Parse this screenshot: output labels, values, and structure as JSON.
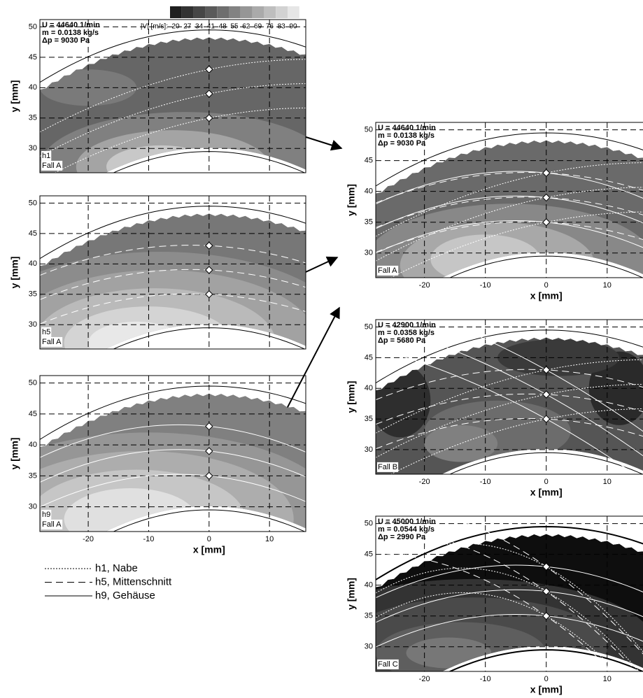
{
  "chart_data": [
    {
      "type": "contour",
      "ylabel": "y [mm]",
      "xlim": [
        -28,
        16
      ],
      "ylim": [
        26,
        51.2
      ],
      "xticks": [
        -20,
        -10,
        0,
        10
      ],
      "yticks": [
        30,
        35,
        40,
        45,
        50
      ],
      "annotations": [
        "U = 44640 1/min",
        "m = 0.0138 kg/s",
        "Δp = 9030 Pa"
      ],
      "labels": [
        "h1",
        "Fall A"
      ],
      "points": {
        "x": [
          0,
          0,
          0
        ],
        "y": [
          43,
          39,
          35
        ]
      },
      "colorbar": {
        "title": "|V| [m/s]:",
        "ticks": [
          20,
          27,
          34,
          41,
          48,
          55,
          62,
          69,
          76,
          83,
          90
        ]
      }
    },
    {
      "type": "contour",
      "ylabel": "y [mm]",
      "xlim": [
        -28,
        16
      ],
      "ylim": [
        26,
        51.2
      ],
      "xticks": [
        -20,
        -10,
        0,
        10
      ],
      "yticks": [
        30,
        35,
        40,
        45,
        50
      ],
      "labels": [
        "h5",
        "Fall A"
      ],
      "points": {
        "x": [
          0,
          0,
          0
        ],
        "y": [
          43,
          39,
          35
        ]
      }
    },
    {
      "type": "contour",
      "ylabel": "y [mm]",
      "xlabel": "x [mm]",
      "xlim": [
        -28,
        16
      ],
      "ylim": [
        26,
        51.2
      ],
      "xticks": [
        -20,
        -10,
        0,
        10
      ],
      "yticks": [
        30,
        35,
        40,
        45,
        50
      ],
      "labels": [
        "h9",
        "Fall A"
      ],
      "points": {
        "x": [
          0,
          0,
          0
        ],
        "y": [
          43,
          39,
          35
        ]
      },
      "legend": [
        "h1, Nabe",
        "h5, Mittenschnitt",
        "h9, Gehäuse"
      ]
    },
    {
      "type": "contour",
      "ylabel": "y [mm]",
      "xlabel": "x [mm]",
      "xlim": [
        -28,
        16
      ],
      "ylim": [
        26,
        51.2
      ],
      "xticks": [
        -20,
        -10,
        0,
        10
      ],
      "yticks": [
        30,
        35,
        40,
        45,
        50
      ],
      "annotations": [
        "U = 44640 1/min",
        "m = 0.0138 kg/s",
        "Δp = 9030 Pa"
      ],
      "labels": [
        "Fall A"
      ],
      "points": {
        "x": [
          0,
          0,
          0
        ],
        "y": [
          43,
          39,
          35
        ]
      }
    },
    {
      "type": "contour",
      "ylabel": "y [mm]",
      "xlabel": "x [mm]",
      "xlim": [
        -28,
        16
      ],
      "ylim": [
        26,
        51.2
      ],
      "xticks": [
        -20,
        -10,
        0,
        10
      ],
      "yticks": [
        30,
        35,
        40,
        45,
        50
      ],
      "annotations": [
        "U = 42900 1/min",
        "m = 0.0358 kg/s",
        "Δp = 5680 Pa"
      ],
      "labels": [
        "Fall B"
      ],
      "points": {
        "x": [
          0,
          0,
          0
        ],
        "y": [
          43,
          39,
          35
        ]
      }
    },
    {
      "type": "contour",
      "ylabel": "y [mm]",
      "xlabel": "x [mm]",
      "xlim": [
        -28,
        16
      ],
      "ylim": [
        26,
        51.2
      ],
      "xticks": [
        -20,
        -10,
        0,
        10
      ],
      "yticks": [
        30,
        35,
        40,
        45,
        50
      ],
      "annotations": [
        "U = 45000 1/min",
        "m = 0.0544 kg/s",
        "Δp = 2990 Pa"
      ],
      "labels": [
        "Fall C"
      ],
      "points": {
        "x": [
          0,
          0,
          0
        ],
        "y": [
          43,
          39,
          35
        ]
      }
    }
  ]
}
